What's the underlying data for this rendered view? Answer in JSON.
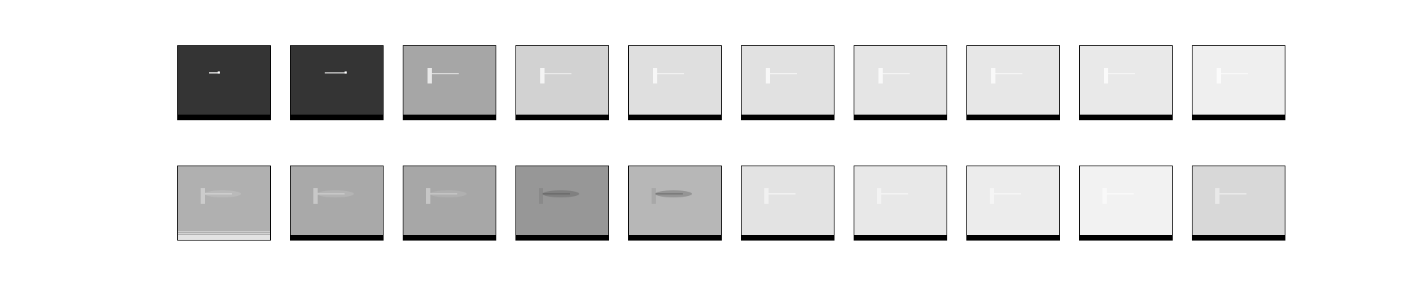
{
  "figure": {
    "rows": [
      {
        "name": "top-row",
        "frames": [
          {
            "bg": "#343434",
            "bottom_bar": "#000000",
            "mark": "#d8d8d8",
            "accent": "#ffffff",
            "kind": "dark-glint"
          },
          {
            "bg": "#343434",
            "bottom_bar": "#000000",
            "mark": "#bdbdbd",
            "accent": "#ffffff",
            "kind": "dark-streak"
          },
          {
            "bg": "#a6a6a6",
            "bottom_bar": "#000000",
            "mark": "#dcdcdc",
            "accent": "#ffffff",
            "kind": "gray-streak"
          },
          {
            "bg": "#d2d2d2",
            "bottom_bar": "#000000",
            "mark": "#ebebeb",
            "accent": "#ffffff",
            "kind": "light-streak"
          },
          {
            "bg": "#dfdfdf",
            "bottom_bar": "#000000",
            "mark": "#f1f1f1",
            "accent": "#ffffff",
            "kind": "light-streak"
          },
          {
            "bg": "#e1e1e1",
            "bottom_bar": "#000000",
            "mark": "#f3f3f3",
            "accent": "#ffffff",
            "kind": "light-streak"
          },
          {
            "bg": "#e5e5e5",
            "bottom_bar": "#000000",
            "mark": "#f4f4f4",
            "accent": "#ffffff",
            "kind": "light-streak"
          },
          {
            "bg": "#e7e7e7",
            "bottom_bar": "#000000",
            "mark": "#f5f5f5",
            "accent": "#ffffff",
            "kind": "light-streak"
          },
          {
            "bg": "#e9e9e9",
            "bottom_bar": "#000000",
            "mark": "#f6f6f6",
            "accent": "#ffffff",
            "kind": "light-streak"
          },
          {
            "bg": "#efefef",
            "bottom_bar": "#000000",
            "mark": "#f8f8f8",
            "accent": "#ffffff",
            "kind": "light-streak"
          }
        ]
      },
      {
        "name": "bottom-row",
        "frames": [
          {
            "bg": "#b0b0b0",
            "bottom_bar": "#e3e3e3",
            "mark": "#cdcdcd",
            "accent": "#d5d5d5",
            "kind": "soft-streak"
          },
          {
            "bg": "#a9a9a9",
            "bottom_bar": "#000000",
            "mark": "#c8c8c8",
            "accent": "#d3d3d3",
            "kind": "soft-streak"
          },
          {
            "bg": "#a7a7a7",
            "bottom_bar": "#000000",
            "mark": "#c4c4c4",
            "accent": "#d0d0d0",
            "kind": "soft-streak"
          },
          {
            "bg": "#979797",
            "bottom_bar": "#000000",
            "mark": "#6d6d6d",
            "accent": "#858585",
            "kind": "dark-streak-soft"
          },
          {
            "bg": "#b7b7b7",
            "bottom_bar": "#000000",
            "mark": "#7a7a7a",
            "accent": "#a3a3a3",
            "kind": "dark-streak-soft"
          },
          {
            "bg": "#e3e3e3",
            "bottom_bar": "#000000",
            "mark": "#f1f1f1",
            "accent": "#f6f6f6",
            "kind": "light-streak"
          },
          {
            "bg": "#e8e8e8",
            "bottom_bar": "#000000",
            "mark": "#f3f3f3",
            "accent": "#f7f7f7",
            "kind": "light-streak"
          },
          {
            "bg": "#ececec",
            "bottom_bar": "#000000",
            "mark": "#f5f5f5",
            "accent": "#f8f8f8",
            "kind": "light-streak"
          },
          {
            "bg": "#f2f2f2",
            "bottom_bar": "#000000",
            "mark": "#f9f9f9",
            "accent": "#fbfbfb",
            "kind": "light-streak"
          },
          {
            "bg": "#d8d8d8",
            "bottom_bar": "#000000",
            "mark": "#eaeaea",
            "accent": "#efefef",
            "kind": "light-streak"
          }
        ]
      }
    ]
  }
}
